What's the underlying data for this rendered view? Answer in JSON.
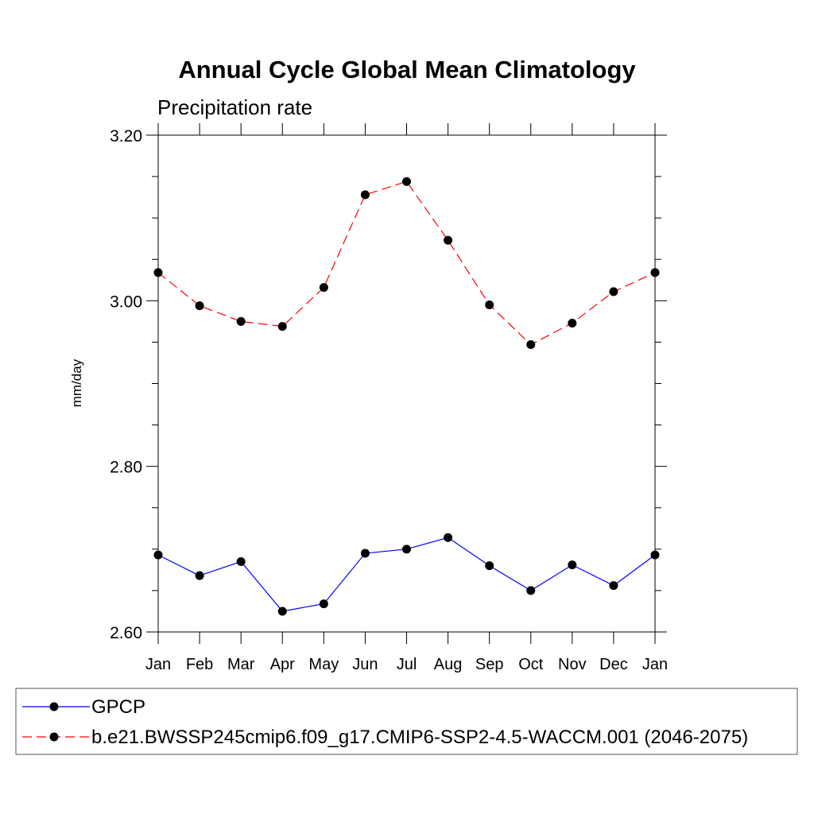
{
  "chart_data": {
    "type": "line",
    "title": "Annual Cycle Global Mean Climatology",
    "subtitle": "Precipitation rate",
    "xlabel": "",
    "ylabel": "mm/day",
    "categories": [
      "Jan",
      "Feb",
      "Mar",
      "Apr",
      "May",
      "Jun",
      "Jul",
      "Aug",
      "Sep",
      "Oct",
      "Nov",
      "Dec",
      "Jan"
    ],
    "ylim": [
      2.6,
      3.2
    ],
    "yticks": [
      2.6,
      2.8,
      3.0,
      3.2
    ],
    "ytick_labels": [
      "2.60",
      "2.80",
      "3.00",
      "3.20"
    ],
    "series": [
      {
        "name": "GPCP",
        "color": "#0000ff",
        "line_style": "solid",
        "values": [
          2.693,
          2.668,
          2.685,
          2.625,
          2.634,
          2.695,
          2.7,
          2.714,
          2.68,
          2.65,
          2.681,
          2.656,
          2.693
        ]
      },
      {
        "name": "b.e21.BWSSP245cmip6.f09_g17.CMIP6-SSP2-4.5-WACCM.001 (2046-2075)",
        "color": "#ff0000",
        "line_style": "dashed",
        "values": [
          3.034,
          2.994,
          2.975,
          2.969,
          3.016,
          3.128,
          3.144,
          3.073,
          2.995,
          2.947,
          2.973,
          3.011,
          3.034
        ]
      }
    ],
    "legend_position": "bottom"
  }
}
